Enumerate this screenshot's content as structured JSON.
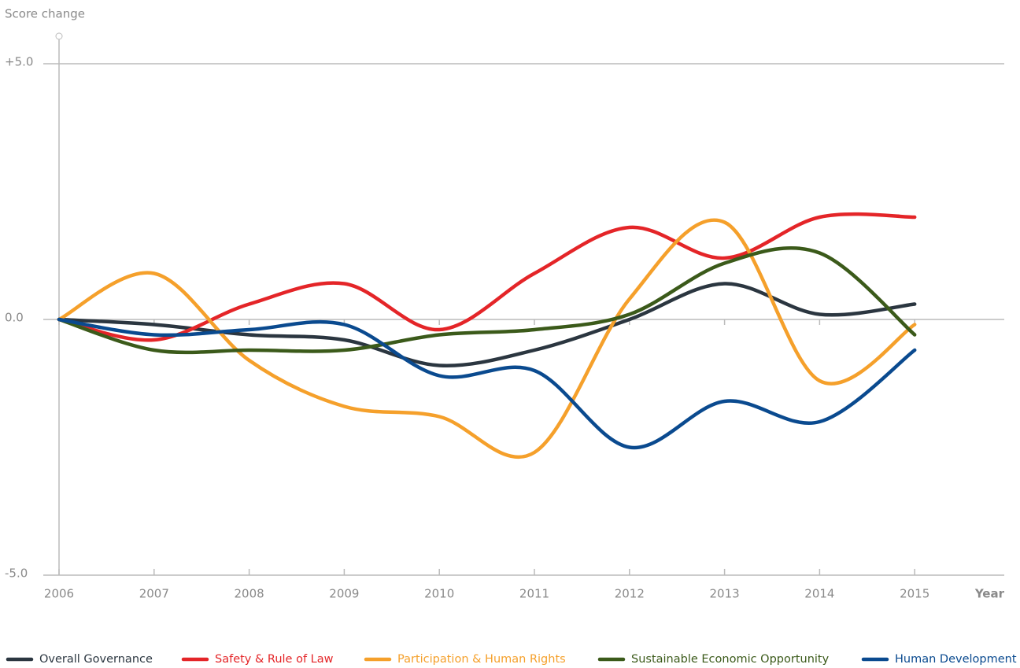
{
  "chart_data": {
    "type": "line",
    "y_label": "Score change",
    "x_label": "Year",
    "x": [
      2006,
      2007,
      2008,
      2009,
      2010,
      2011,
      2012,
      2013,
      2014,
      2015
    ],
    "xlim": [
      2006,
      2016
    ],
    "xticks": [
      2006,
      2007,
      2008,
      2009,
      2010,
      2011,
      2012,
      2013,
      2014,
      2015
    ],
    "ylim": [
      -5,
      5
    ],
    "yticks": [
      {
        "value": 5,
        "label": "+5.0"
      },
      {
        "value": 0,
        "label": "0.0"
      },
      {
        "value": -5,
        "label": "-5.0"
      }
    ],
    "grid": true,
    "legend": "bottom",
    "series": [
      {
        "name": "Overall Governance",
        "color": "#2b3640",
        "values": [
          0,
          -0.1,
          -0.3,
          -0.4,
          -0.9,
          -0.6,
          0.0,
          0.7,
          0.1,
          0.3
        ]
      },
      {
        "name": "Safety & Rule of Law",
        "color": "#e42528",
        "values": [
          0,
          -0.4,
          0.3,
          0.7,
          -0.2,
          0.9,
          1.8,
          1.2,
          2.0,
          2.0
        ]
      },
      {
        "name": "Participation & Human Rights",
        "color": "#f5a02b",
        "values": [
          0,
          0.9,
          -0.8,
          -1.7,
          -1.9,
          -2.6,
          0.4,
          1.9,
          -1.2,
          -0.1
        ]
      },
      {
        "name": "Sustainable Economic Opportunity",
        "color": "#3b5a1a",
        "values": [
          0,
          -0.6,
          -0.6,
          -0.6,
          -0.3,
          -0.2,
          0.1,
          1.1,
          1.3,
          -0.3
        ]
      },
      {
        "name": "Human Development",
        "color": "#0a4a8f",
        "values": [
          0,
          -0.3,
          -0.2,
          -0.1,
          -1.1,
          -1.0,
          -2.5,
          -1.6,
          -2.0,
          -0.6
        ]
      }
    ]
  }
}
